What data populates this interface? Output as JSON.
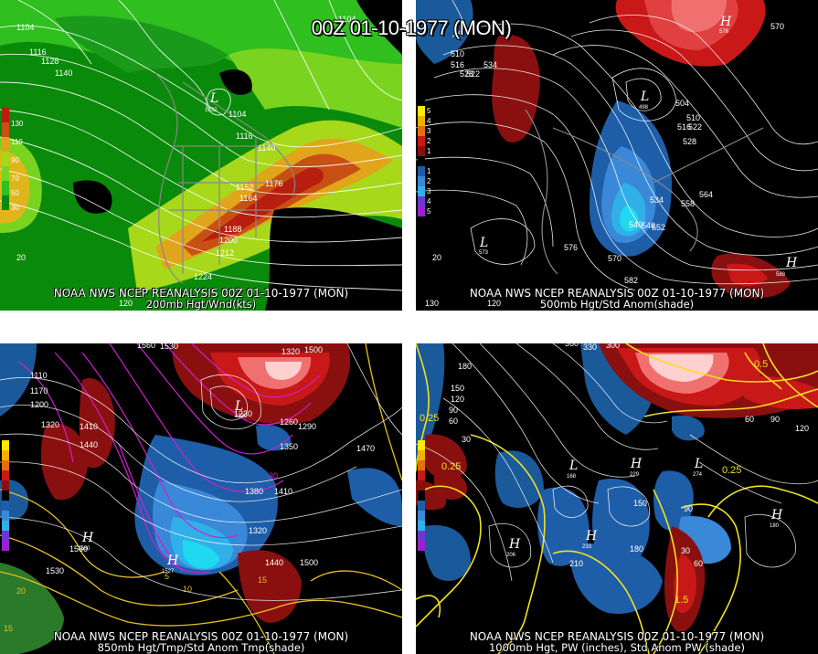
{
  "header": {
    "title": "00Z 01-10-1977 (MON)"
  },
  "panels": [
    {
      "id": "200mb",
      "source": "NOAA NWS NCEP REANALYSIS 00Z 01-10-1977 (MON)",
      "caption": "200mb Hgt/Wnd(kts)",
      "legend": [
        "130",
        "110",
        "90",
        "70",
        "50",
        "30"
      ],
      "contour_labels": [
        "1104",
        "1116",
        "1128",
        "1140",
        "1104",
        "1116",
        "1140",
        "1152",
        "1164",
        "1176",
        "1188",
        "1200",
        "1212",
        "1224",
        "1104",
        "20",
        "120"
      ],
      "centers": [
        {
          "type": "L",
          "value": "1032"
        }
      ]
    },
    {
      "id": "500mb",
      "source": "NOAA NWS NCEP REANALYSIS 00Z 01-10-1977 (MON)",
      "caption": "500mb Hgt/Std Anom(shade)",
      "legend": [
        "5",
        "4",
        "3",
        "2",
        "1",
        "",
        "1",
        "2",
        "3",
        "4",
        "5"
      ],
      "contour_labels": [
        "510",
        "516",
        "522",
        "528",
        "534",
        "504",
        "510",
        "516",
        "522",
        "528",
        "534",
        "540",
        "546",
        "552",
        "558",
        "564",
        "570",
        "576",
        "582",
        "570",
        "20",
        "130",
        "120"
      ],
      "centers": [
        {
          "type": "H",
          "value": "576"
        },
        {
          "type": "L",
          "value": "498"
        },
        {
          "type": "L",
          "value": "573"
        },
        {
          "type": "H",
          "value": "588"
        }
      ]
    },
    {
      "id": "850mb",
      "source": "NOAA NWS NCEP REANALYSIS 00Z 01-10-1977 (MON)",
      "caption": "850mb Hgt/Tmp/Std Anom Tmp(shade)",
      "legend": [
        "",
        "",
        "",
        "",
        "",
        "",
        "",
        "",
        "",
        "",
        ""
      ],
      "contour_labels": [
        "1110",
        "1170",
        "1200",
        "1320",
        "1410",
        "1440",
        "1560",
        "1530",
        "1500",
        "1320",
        "1290",
        "1260",
        "1230",
        "1350",
        "1380",
        "1410",
        "1470",
        "1320",
        "1440",
        "1500",
        "1530",
        "1560",
        "-30",
        "5",
        "10",
        "15",
        "20",
        "15"
      ],
      "centers": [
        {
          "type": "L",
          "value": "1230"
        },
        {
          "type": "H",
          "value": "1527"
        },
        {
          "type": "H",
          "value": "1560"
        }
      ]
    },
    {
      "id": "1000mb",
      "source": "NOAA NWS NCEP REANALYSIS 00Z 01-10-1977 (MON)",
      "caption": "1000mb Hgt, PW (inches), Std Anom PW (shade)",
      "legend": [
        "",
        "",
        "",
        "",
        "",
        "",
        "",
        "",
        "",
        "",
        ""
      ],
      "contour_labels": [
        "360",
        "330",
        "300",
        "180",
        "150",
        "120",
        "90",
        "60",
        "30",
        "120",
        "90",
        "60",
        "150",
        "180",
        "210",
        "90",
        "60",
        "30",
        "1.5",
        "0.25",
        "0.25",
        "0.5",
        "0.25"
      ],
      "centers": [
        {
          "type": "L",
          "value": "168"
        },
        {
          "type": "H",
          "value": "229"
        },
        {
          "type": "H",
          "value": "233"
        },
        {
          "type": "H",
          "value": "206"
        },
        {
          "type": "H",
          "value": "180"
        },
        {
          "type": "L",
          "value": "274"
        }
      ]
    }
  ]
}
